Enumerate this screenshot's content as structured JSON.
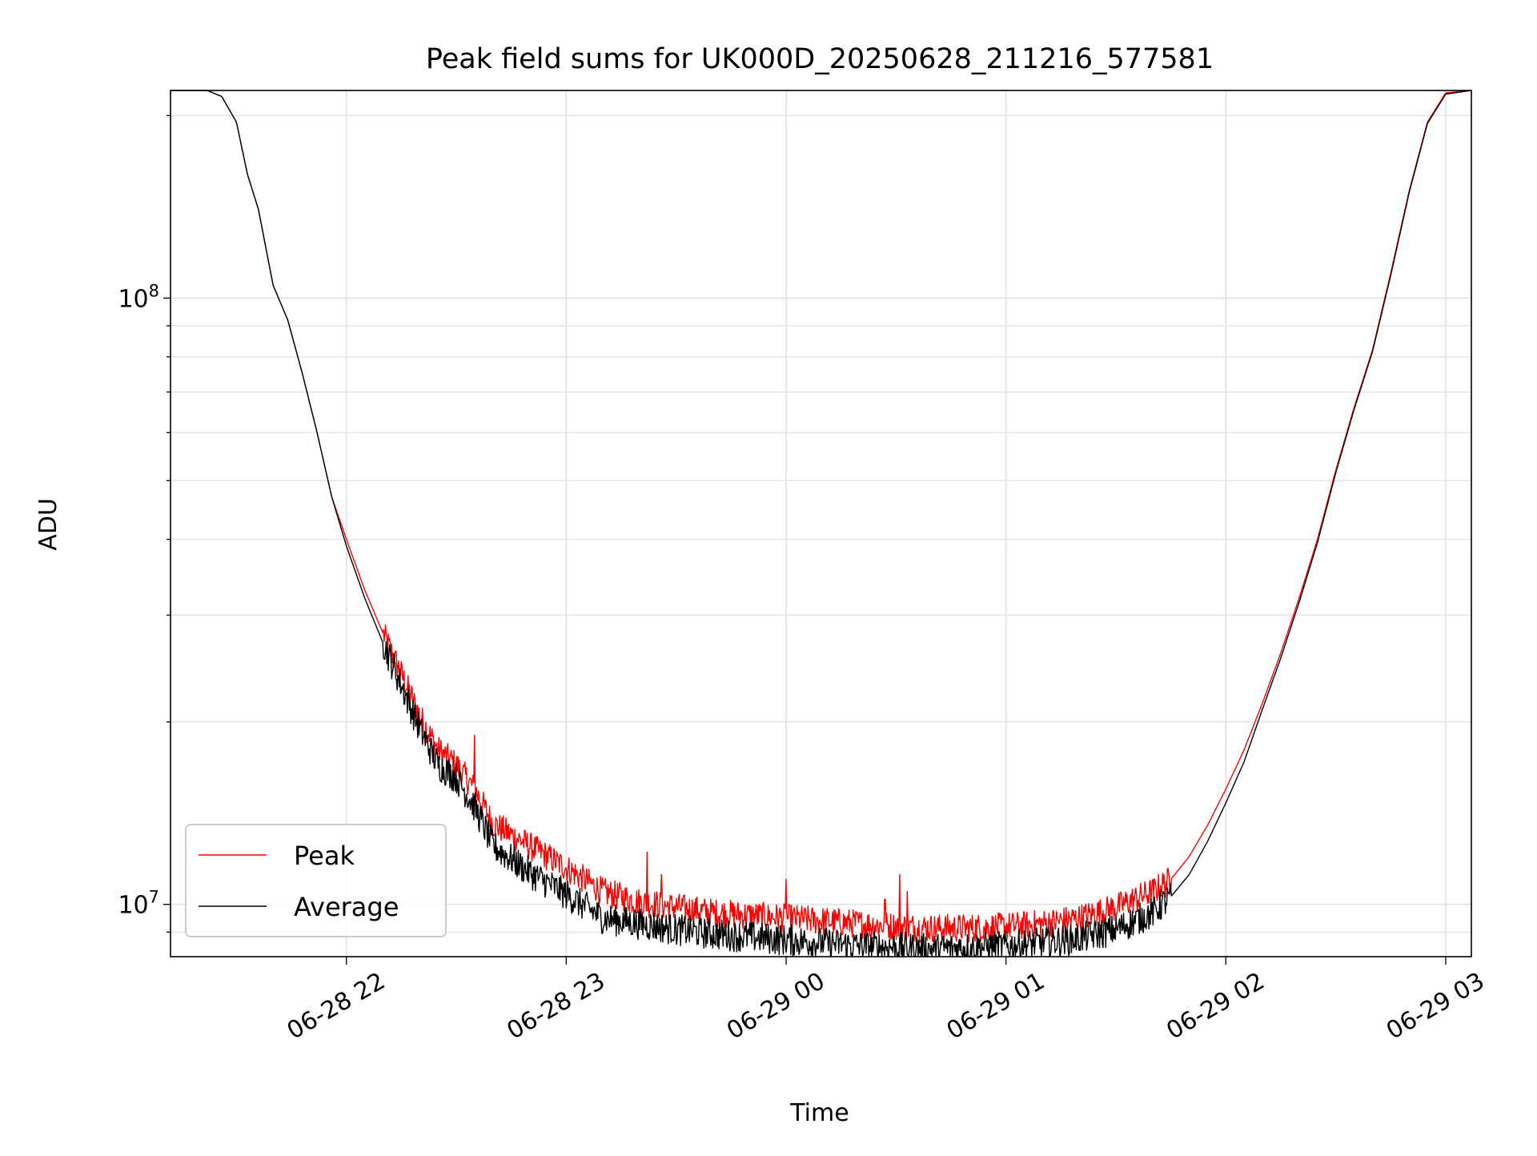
{
  "chart_data": {
    "type": "line",
    "title": "Peak field sums for UK000D_20250628_211216_577581",
    "xlabel": "Time",
    "ylabel": "ADU",
    "y_scale": "log",
    "ylim": [
      8200000,
      220000000
    ],
    "xlim": [
      "2025-06-28 21:12",
      "2025-06-29 03:07"
    ],
    "grid": true,
    "legend_position": "lower-left",
    "x_ticks": [
      {
        "label": "06-28 22",
        "time": "2025-06-28 22:00"
      },
      {
        "label": "06-28 23",
        "time": "2025-06-28 23:00"
      },
      {
        "label": "06-29 00",
        "time": "2025-06-29 00:00"
      },
      {
        "label": "06-29 01",
        "time": "2025-06-29 01:00"
      },
      {
        "label": "06-29 02",
        "time": "2025-06-29 02:00"
      },
      {
        "label": "06-29 03",
        "time": "2025-06-29 03:00"
      }
    ],
    "y_ticks": [
      {
        "label": "10",
        "exponent": "7",
        "value": 10000000
      },
      {
        "label": "10",
        "exponent": "8",
        "value": 100000000
      }
    ],
    "series": [
      {
        "name": "Peak",
        "color": "#ff0000",
        "x": [
          "2025-06-28 21:12",
          "2025-06-28 21:22",
          "2025-06-28 21:26",
          "2025-06-28 21:30",
          "2025-06-28 21:33",
          "2025-06-28 21:36",
          "2025-06-28 21:40",
          "2025-06-28 21:44",
          "2025-06-28 21:48",
          "2025-06-28 21:52",
          "2025-06-28 21:56",
          "2025-06-28 22:00",
          "2025-06-28 22:05",
          "2025-06-28 22:10",
          "2025-06-28 22:15",
          "2025-06-28 22:20",
          "2025-06-28 22:25",
          "2025-06-28 22:30",
          "2025-06-28 22:35",
          "2025-06-28 22:40",
          "2025-06-28 22:50",
          "2025-06-28 23:00",
          "2025-06-28 23:10",
          "2025-06-28 23:20",
          "2025-06-28 23:30",
          "2025-06-28 23:40",
          "2025-06-28 23:50",
          "2025-06-29 00:00",
          "2025-06-29 00:10",
          "2025-06-29 00:20",
          "2025-06-29 00:30",
          "2025-06-29 00:40",
          "2025-06-29 00:50",
          "2025-06-29 01:00",
          "2025-06-29 01:10",
          "2025-06-29 01:20",
          "2025-06-29 01:30",
          "2025-06-29 01:40",
          "2025-06-29 01:45",
          "2025-06-29 01:50",
          "2025-06-29 01:55",
          "2025-06-29 02:00",
          "2025-06-29 02:05",
          "2025-06-29 02:10",
          "2025-06-29 02:15",
          "2025-06-29 02:20",
          "2025-06-29 02:25",
          "2025-06-29 02:30",
          "2025-06-29 02:35",
          "2025-06-29 02:40",
          "2025-06-29 02:45",
          "2025-06-29 02:50",
          "2025-06-29 02:55",
          "2025-06-29 03:00",
          "2025-06-29 03:07"
        ],
        "y": [
          220000000,
          220000000,
          215000000,
          195000000,
          160000000,
          140000000,
          105000000,
          92000000,
          75000000,
          60000000,
          47000000,
          40000000,
          33000000,
          28000000,
          24000000,
          20500000,
          18000000,
          17000000,
          15500000,
          13600000,
          12500000,
          11500000,
          10500000,
          10100000,
          9900000,
          9700000,
          9600000,
          9500000,
          9400000,
          9300000,
          9200000,
          9150000,
          9150000,
          9200000,
          9300000,
          9500000,
          9900000,
          10500000,
          11000000,
          12000000,
          13500000,
          15500000,
          18000000,
          21500000,
          26000000,
          32000000,
          40000000,
          52000000,
          66000000,
          82000000,
          110000000,
          150000000,
          195000000,
          218000000,
          220000000
        ],
        "noise_window": [
          "2025-06-28 22:10",
          "2025-06-29 01:45"
        ],
        "spikes": [
          {
            "x": "2025-06-28 22:35",
            "y": 19000000
          },
          {
            "x": "2025-06-28 23:22",
            "y": 12200000
          },
          {
            "x": "2025-06-28 23:26",
            "y": 11200000
          },
          {
            "x": "2025-06-29 00:00",
            "y": 11000000
          },
          {
            "x": "2025-06-29 00:27",
            "y": 10200000
          },
          {
            "x": "2025-06-29 00:31",
            "y": 11200000
          },
          {
            "x": "2025-06-29 00:33",
            "y": 10500000
          }
        ]
      },
      {
        "name": "Average",
        "color": "#000000",
        "x": [
          "2025-06-28 21:12",
          "2025-06-28 21:22",
          "2025-06-28 21:26",
          "2025-06-28 21:30",
          "2025-06-28 21:33",
          "2025-06-28 21:36",
          "2025-06-28 21:40",
          "2025-06-28 21:44",
          "2025-06-28 21:48",
          "2025-06-28 21:52",
          "2025-06-28 21:56",
          "2025-06-28 22:00",
          "2025-06-28 22:05",
          "2025-06-28 22:10",
          "2025-06-28 22:15",
          "2025-06-28 22:20",
          "2025-06-28 22:25",
          "2025-06-28 22:30",
          "2025-06-28 22:35",
          "2025-06-28 22:40",
          "2025-06-28 22:50",
          "2025-06-28 23:00",
          "2025-06-28 23:10",
          "2025-06-28 23:20",
          "2025-06-28 23:30",
          "2025-06-28 23:40",
          "2025-06-28 23:50",
          "2025-06-29 00:00",
          "2025-06-29 00:10",
          "2025-06-29 00:20",
          "2025-06-29 00:30",
          "2025-06-29 00:40",
          "2025-06-29 00:50",
          "2025-06-29 01:00",
          "2025-06-29 01:10",
          "2025-06-29 01:20",
          "2025-06-29 01:30",
          "2025-06-29 01:40",
          "2025-06-29 01:45",
          "2025-06-29 01:50",
          "2025-06-29 01:55",
          "2025-06-29 02:00",
          "2025-06-29 02:05",
          "2025-06-29 02:10",
          "2025-06-29 02:15",
          "2025-06-29 02:20",
          "2025-06-29 02:25",
          "2025-06-29 02:30",
          "2025-06-29 02:35",
          "2025-06-29 02:40",
          "2025-06-29 02:45",
          "2025-06-29 02:50",
          "2025-06-29 02:55",
          "2025-06-29 03:00",
          "2025-06-29 03:07"
        ],
        "y": [
          220000000,
          220000000,
          215000000,
          195000000,
          160000000,
          140000000,
          105000000,
          92000000,
          75000000,
          60000000,
          47000000,
          39000000,
          32000000,
          27000000,
          23000000,
          19500000,
          17000000,
          16200000,
          14500000,
          12500000,
          11300000,
          10400000,
          9500000,
          9300000,
          9100000,
          8950000,
          8850000,
          8750000,
          8650000,
          8550000,
          8500000,
          8450000,
          8500000,
          8550000,
          8650000,
          8800000,
          9100000,
          9700000,
          10300000,
          11200000,
          12700000,
          14700000,
          17200000,
          21000000,
          25500000,
          31500000,
          39500000,
          51500000,
          65500000,
          81500000,
          109000000,
          149000000,
          194000000,
          217000000,
          220000000
        ],
        "noise_window": [
          "2025-06-28 22:10",
          "2025-06-29 01:45"
        ],
        "spikes": []
      }
    ]
  }
}
